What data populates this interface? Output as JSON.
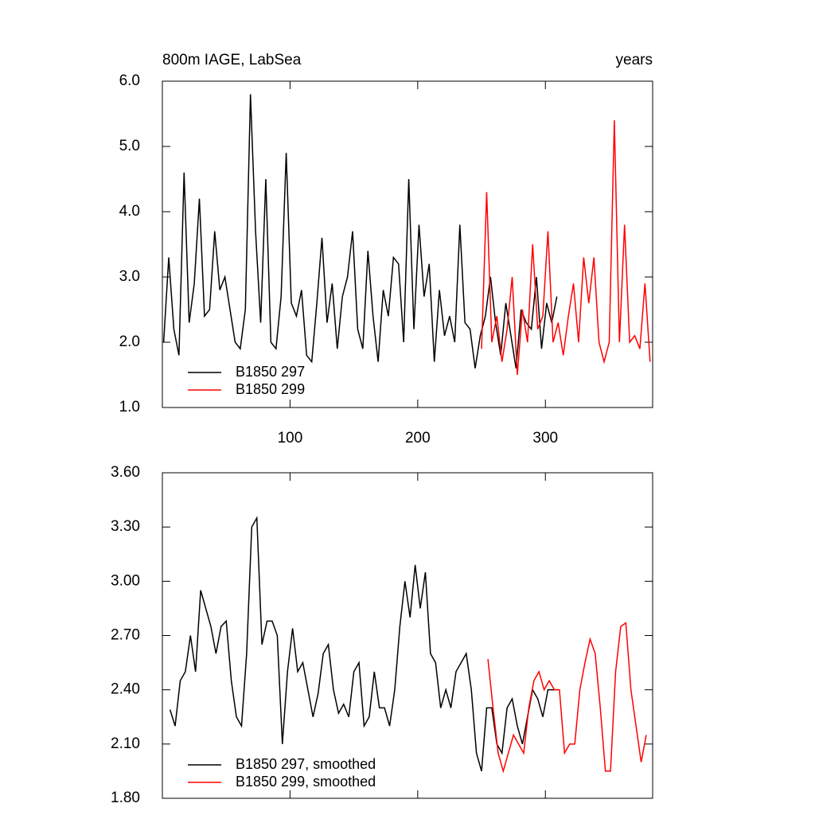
{
  "chart_data": [
    {
      "type": "line",
      "title": "800m IAGE, LabSea",
      "units_label": "years",
      "xlim": [
        0,
        384
      ],
      "xticks": [
        100,
        200,
        300
      ],
      "ylim": [
        1,
        6
      ],
      "yticks": [
        {
          "value": 1,
          "label": "1.0"
        },
        {
          "value": 2,
          "label": "2.0"
        },
        {
          "value": 3,
          "label": "3.0"
        },
        {
          "value": 4,
          "label": "4.0"
        },
        {
          "value": 5,
          "label": "5.0"
        },
        {
          "value": 6,
          "label": "6.0"
        }
      ],
      "series": [
        {
          "name": "B1850 297",
          "color": "#000000",
          "x": [
            1,
            5,
            9,
            13,
            17,
            21,
            25,
            29,
            33,
            37,
            41,
            45,
            49,
            53,
            57,
            61,
            65,
            69,
            73,
            77,
            81,
            85,
            89,
            93,
            97,
            101,
            105,
            109,
            113,
            117,
            121,
            125,
            129,
            133,
            137,
            141,
            145,
            149,
            153,
            157,
            161,
            165,
            169,
            173,
            177,
            181,
            185,
            189,
            193,
            197,
            201,
            205,
            209,
            213,
            217,
            221,
            225,
            229,
            233,
            237,
            241,
            245,
            249,
            253,
            257,
            261,
            265,
            269,
            273,
            277,
            281,
            285,
            289,
            293,
            297,
            301,
            305,
            309
          ],
          "values": [
            2.0,
            3.3,
            2.2,
            1.8,
            4.6,
            2.3,
            2.9,
            4.2,
            2.4,
            2.5,
            3.7,
            2.8,
            3.0,
            2.5,
            2.0,
            1.9,
            2.5,
            5.8,
            3.7,
            2.3,
            4.5,
            2.0,
            1.9,
            2.7,
            4.9,
            2.6,
            2.4,
            2.8,
            1.8,
            1.7,
            2.6,
            3.6,
            2.3,
            2.9,
            1.9,
            2.7,
            3.0,
            3.7,
            2.2,
            1.9,
            3.4,
            2.4,
            1.7,
            2.8,
            2.4,
            3.3,
            3.2,
            2.0,
            4.5,
            2.2,
            3.8,
            2.7,
            3.2,
            1.7,
            2.8,
            2.1,
            2.4,
            2.0,
            3.8,
            2.3,
            2.2,
            1.6,
            2.1,
            2.4,
            3.0,
            2.3,
            1.8,
            2.6,
            2.1,
            1.6,
            2.5,
            2.3,
            2.2,
            3.0,
            1.9,
            2.6,
            2.3,
            2.7
          ]
        },
        {
          "name": "B1850 299",
          "color": "#ff0000",
          "x": [
            250,
            254,
            258,
            262,
            266,
            270,
            274,
            278,
            282,
            286,
            290,
            294,
            298,
            302,
            306,
            310,
            314,
            318,
            322,
            326,
            330,
            334,
            338,
            342,
            346,
            350,
            354,
            358,
            362,
            366,
            370,
            374,
            378,
            382
          ],
          "values": [
            1.9,
            4.3,
            2.0,
            2.4,
            1.7,
            2.2,
            3.0,
            1.5,
            2.5,
            2.0,
            3.5,
            2.2,
            2.4,
            3.7,
            2.0,
            2.3,
            1.8,
            2.4,
            2.9,
            2.0,
            3.3,
            2.6,
            3.3,
            2.0,
            1.7,
            2.0,
            5.4,
            2.0,
            3.8,
            2.0,
            2.1,
            1.9,
            2.9,
            1.7
          ]
        }
      ]
    },
    {
      "type": "line",
      "xlim": [
        0,
        384
      ],
      "xticks": [
        100,
        200,
        300
      ],
      "ylim": [
        1.8,
        3.6
      ],
      "yticks": [
        {
          "value": 1.8,
          "label": "1.80"
        },
        {
          "value": 2.1,
          "label": "2.10"
        },
        {
          "value": 2.4,
          "label": "2.40"
        },
        {
          "value": 2.7,
          "label": "2.70"
        },
        {
          "value": 3.0,
          "label": "3.00"
        },
        {
          "value": 3.3,
          "label": "3.30"
        },
        {
          "value": 3.6,
          "label": "3.60"
        }
      ],
      "series": [
        {
          "name": "B1850 297, smoothed",
          "color": "#000000",
          "x": [
            6,
            10,
            14,
            18,
            22,
            26,
            30,
            34,
            38,
            42,
            46,
            50,
            54,
            58,
            62,
            66,
            70,
            74,
            78,
            82,
            86,
            90,
            94,
            98,
            102,
            106,
            110,
            114,
            118,
            122,
            126,
            130,
            134,
            138,
            142,
            146,
            150,
            154,
            158,
            162,
            166,
            170,
            174,
            178,
            182,
            186,
            190,
            194,
            198,
            202,
            206,
            210,
            214,
            218,
            222,
            226,
            230,
            234,
            238,
            242,
            246,
            250,
            254,
            258,
            262,
            266,
            270,
            274,
            278,
            282,
            286,
            290,
            294,
            298,
            302,
            306,
            310
          ],
          "values": [
            2.29,
            2.2,
            2.45,
            2.5,
            2.7,
            2.5,
            2.95,
            2.85,
            2.75,
            2.6,
            2.75,
            2.78,
            2.45,
            2.25,
            2.2,
            2.6,
            3.3,
            3.35,
            2.65,
            2.78,
            2.78,
            2.7,
            2.1,
            2.5,
            2.74,
            2.5,
            2.55,
            2.4,
            2.25,
            2.38,
            2.6,
            2.65,
            2.4,
            2.27,
            2.32,
            2.25,
            2.5,
            2.55,
            2.2,
            2.25,
            2.5,
            2.3,
            2.3,
            2.2,
            2.4,
            2.75,
            3.0,
            2.8,
            3.09,
            2.85,
            3.05,
            2.6,
            2.55,
            2.3,
            2.4,
            2.3,
            2.5,
            2.55,
            2.6,
            2.4,
            2.05,
            1.95,
            2.3,
            2.3,
            2.1,
            2.05,
            2.3,
            2.35,
            2.2,
            2.1,
            2.25,
            2.4,
            2.35,
            2.25,
            2.4,
            2.4,
            2.4
          ]
        },
        {
          "name": "B1850 299, smoothed",
          "color": "#ff0000",
          "x": [
            255,
            259,
            263,
            267,
            271,
            275,
            279,
            283,
            287,
            291,
            295,
            299,
            303,
            307,
            311,
            315,
            319,
            323,
            327,
            331,
            335,
            339,
            343,
            347,
            351,
            355,
            359,
            363,
            367,
            371,
            375,
            379
          ],
          "values": [
            2.57,
            2.3,
            2.05,
            1.95,
            2.05,
            2.15,
            2.1,
            2.05,
            2.3,
            2.45,
            2.5,
            2.4,
            2.45,
            2.4,
            2.4,
            2.05,
            2.1,
            2.1,
            2.4,
            2.55,
            2.68,
            2.6,
            2.3,
            1.95,
            1.95,
            2.5,
            2.75,
            2.77,
            2.4,
            2.2,
            2.0,
            2.15
          ]
        }
      ]
    }
  ]
}
